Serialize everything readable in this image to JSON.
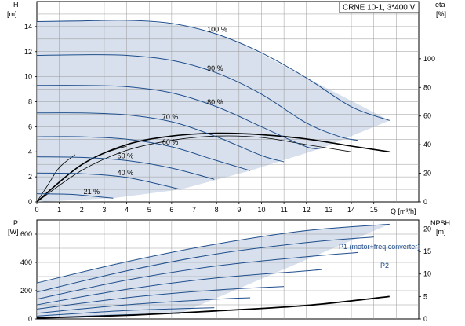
{
  "title": "CRNE 10-1, 3*400 V",
  "colors": {
    "band": "#c9d6e6",
    "curve": "#1f4e8c",
    "eta_curve": "#000000",
    "grid": "#9a9a9a",
    "axis": "#000000"
  },
  "chart_data": [
    {
      "type": "line",
      "panel": "head-efficiency",
      "xlabel": "Q [m³/h]",
      "ylabel_left": "H",
      "ylabel_left_unit": "[m]",
      "ylabel_right": "eta",
      "ylabel_right_unit": "[%]",
      "xlim": [
        0,
        17
      ],
      "ylim_left": [
        0,
        16
      ],
      "ylim_right": [
        0,
        140
      ],
      "x_ticks": [
        0,
        1,
        2,
        3,
        4,
        5,
        6,
        7,
        8,
        9,
        10,
        11,
        12,
        13,
        14,
        15
      ],
      "y_ticks_left": [
        0,
        2,
        4,
        6,
        8,
        10,
        12,
        14
      ],
      "y_ticks_right": [
        0,
        20,
        40,
        60,
        80,
        100
      ],
      "grid": true,
      "head_curves": [
        {
          "speed": "100 %",
          "points": [
            [
              0,
              14.4
            ],
            [
              2,
              14.45
            ],
            [
              4,
              14.5
            ],
            [
              6,
              14.25
            ],
            [
              8,
              13.4
            ],
            [
              10,
              11.9
            ],
            [
              12,
              9.9
            ],
            [
              14,
              7.6
            ],
            [
              15.7,
              6.5
            ]
          ]
        },
        {
          "speed": "90 %",
          "points": [
            [
              0,
              11.7
            ],
            [
              2,
              11.75
            ],
            [
              4,
              11.7
            ],
            [
              6,
              11.3
            ],
            [
              8,
              10.3
            ],
            [
              10,
              8.6
            ],
            [
              12,
              6.3
            ],
            [
              13.5,
              5.2
            ],
            [
              14.3,
              4.9
            ]
          ]
        },
        {
          "speed": "80 %",
          "points": [
            [
              0,
              9.3
            ],
            [
              2,
              9.3
            ],
            [
              4,
              9.2
            ],
            [
              6,
              8.7
            ],
            [
              8,
              7.6
            ],
            [
              10,
              6.0
            ],
            [
              12,
              4.4
            ],
            [
              12.7,
              4.3
            ]
          ]
        },
        {
          "speed": "70 %",
          "points": [
            [
              0,
              7.1
            ],
            [
              2,
              7.1
            ],
            [
              4,
              6.95
            ],
            [
              6,
              6.4
            ],
            [
              8,
              5.2
            ],
            [
              10,
              3.7
            ],
            [
              11,
              3.2
            ]
          ]
        },
        {
          "speed": "60 %",
          "points": [
            [
              0,
              5.2
            ],
            [
              2,
              5.2
            ],
            [
              4,
              5.0
            ],
            [
              6,
              4.4
            ],
            [
              8,
              3.3
            ],
            [
              9.5,
              2.5
            ]
          ]
        },
        {
          "speed": "50 %",
          "points": [
            [
              0,
              3.6
            ],
            [
              2,
              3.55
            ],
            [
              4,
              3.3
            ],
            [
              6,
              2.7
            ],
            [
              7.9,
              1.8
            ]
          ]
        },
        {
          "speed": "40 %",
          "points": [
            [
              0,
              2.3
            ],
            [
              2,
              2.25
            ],
            [
              4,
              1.95
            ],
            [
              6.4,
              1.0
            ]
          ]
        },
        {
          "speed": "21 %",
          "points": [
            [
              0,
              0.65
            ],
            [
              1.5,
              0.6
            ],
            [
              2.5,
              0.45
            ],
            [
              3.4,
              0.3
            ]
          ]
        }
      ],
      "eta_curves": [
        {
          "points": [
            [
              0,
              0
            ],
            [
              2,
              26
            ],
            [
              4,
              40
            ],
            [
              6,
              46
            ],
            [
              8,
              48
            ],
            [
              10,
              47
            ],
            [
              12,
              44
            ],
            [
              14,
              39
            ],
            [
              15.7,
              35
            ]
          ]
        },
        {
          "points": [
            [
              0,
              0
            ],
            [
              2,
              22
            ],
            [
              4,
              36
            ],
            [
              6,
              43
            ],
            [
              8,
              46
            ],
            [
              10,
              45
            ],
            [
              12,
              40
            ],
            [
              14,
              35
            ]
          ]
        },
        {
          "points": [
            [
              0,
              0
            ],
            [
              1,
              14
            ],
            [
              2,
              26
            ],
            [
              3,
              34
            ],
            [
              4,
              39
            ]
          ]
        },
        {
          "points": [
            [
              0,
              0
            ],
            [
              0.5,
              12
            ],
            [
              1,
              24
            ],
            [
              1.7,
              33
            ]
          ]
        }
      ],
      "band_top": [
        [
          0,
          14.4
        ],
        [
          4,
          14.5
        ],
        [
          8,
          13.4
        ],
        [
          12,
          9.9
        ],
        [
          15.7,
          6.5
        ]
      ],
      "band_bottom": [
        [
          0,
          0.0
        ],
        [
          3.4,
          0.3
        ],
        [
          6.4,
          1.0
        ],
        [
          9.5,
          2.5
        ],
        [
          12.7,
          4.3
        ],
        [
          15.7,
          6.5
        ]
      ]
    },
    {
      "type": "line",
      "panel": "power-npsh",
      "ylabel_left": "P",
      "ylabel_left_unit": "[W]",
      "ylabel_right": "NPSH",
      "ylabel_right_unit": "[m]",
      "xlim": [
        0,
        17
      ],
      "ylim_left": [
        0,
        700
      ],
      "ylim_right": [
        0,
        22
      ],
      "y_ticks_left": [
        0,
        200,
        400,
        600
      ],
      "y_ticks_right": [
        0,
        5,
        10,
        15,
        20
      ],
      "grid": true,
      "p1_label": "P1 (motor+freq.converter)",
      "p2_label": "P2",
      "power_curves": [
        {
          "points": [
            [
              0,
              255
            ],
            [
              4,
              405
            ],
            [
              8,
              530
            ],
            [
              12,
              625
            ],
            [
              15.7,
              670
            ]
          ]
        },
        {
          "points": [
            [
              0,
              190
            ],
            [
              4,
              340
            ],
            [
              8,
              460
            ],
            [
              12,
              540
            ],
            [
              15,
              580
            ]
          ]
        },
        {
          "points": [
            [
              0,
              140
            ],
            [
              4,
              275
            ],
            [
              8,
              375
            ],
            [
              12,
              440
            ],
            [
              14.3,
              470
            ]
          ]
        },
        {
          "points": [
            [
              0,
              100
            ],
            [
              4,
              210
            ],
            [
              8,
              290
            ],
            [
              12,
              340
            ],
            [
              12.7,
              350
            ]
          ]
        },
        {
          "points": [
            [
              0,
              70
            ],
            [
              4,
              150
            ],
            [
              8,
              205
            ],
            [
              11,
              230
            ]
          ]
        },
        {
          "points": [
            [
              0,
              40
            ],
            [
              4,
              100
            ],
            [
              8,
              140
            ],
            [
              9.5,
              150
            ]
          ]
        },
        {
          "points": [
            [
              0,
              20
            ],
            [
              4,
              60
            ],
            [
              7.9,
              80
            ]
          ]
        },
        {
          "points": [
            [
              0,
              8
            ],
            [
              4,
              30
            ],
            [
              6.4,
              40
            ]
          ]
        }
      ],
      "npsh_curve": {
        "points": [
          [
            0,
            0.2
          ],
          [
            4,
            0.8
          ],
          [
            8,
            1.8
          ],
          [
            12,
            3.0
          ],
          [
            15.7,
            5.0
          ]
        ]
      }
    }
  ]
}
